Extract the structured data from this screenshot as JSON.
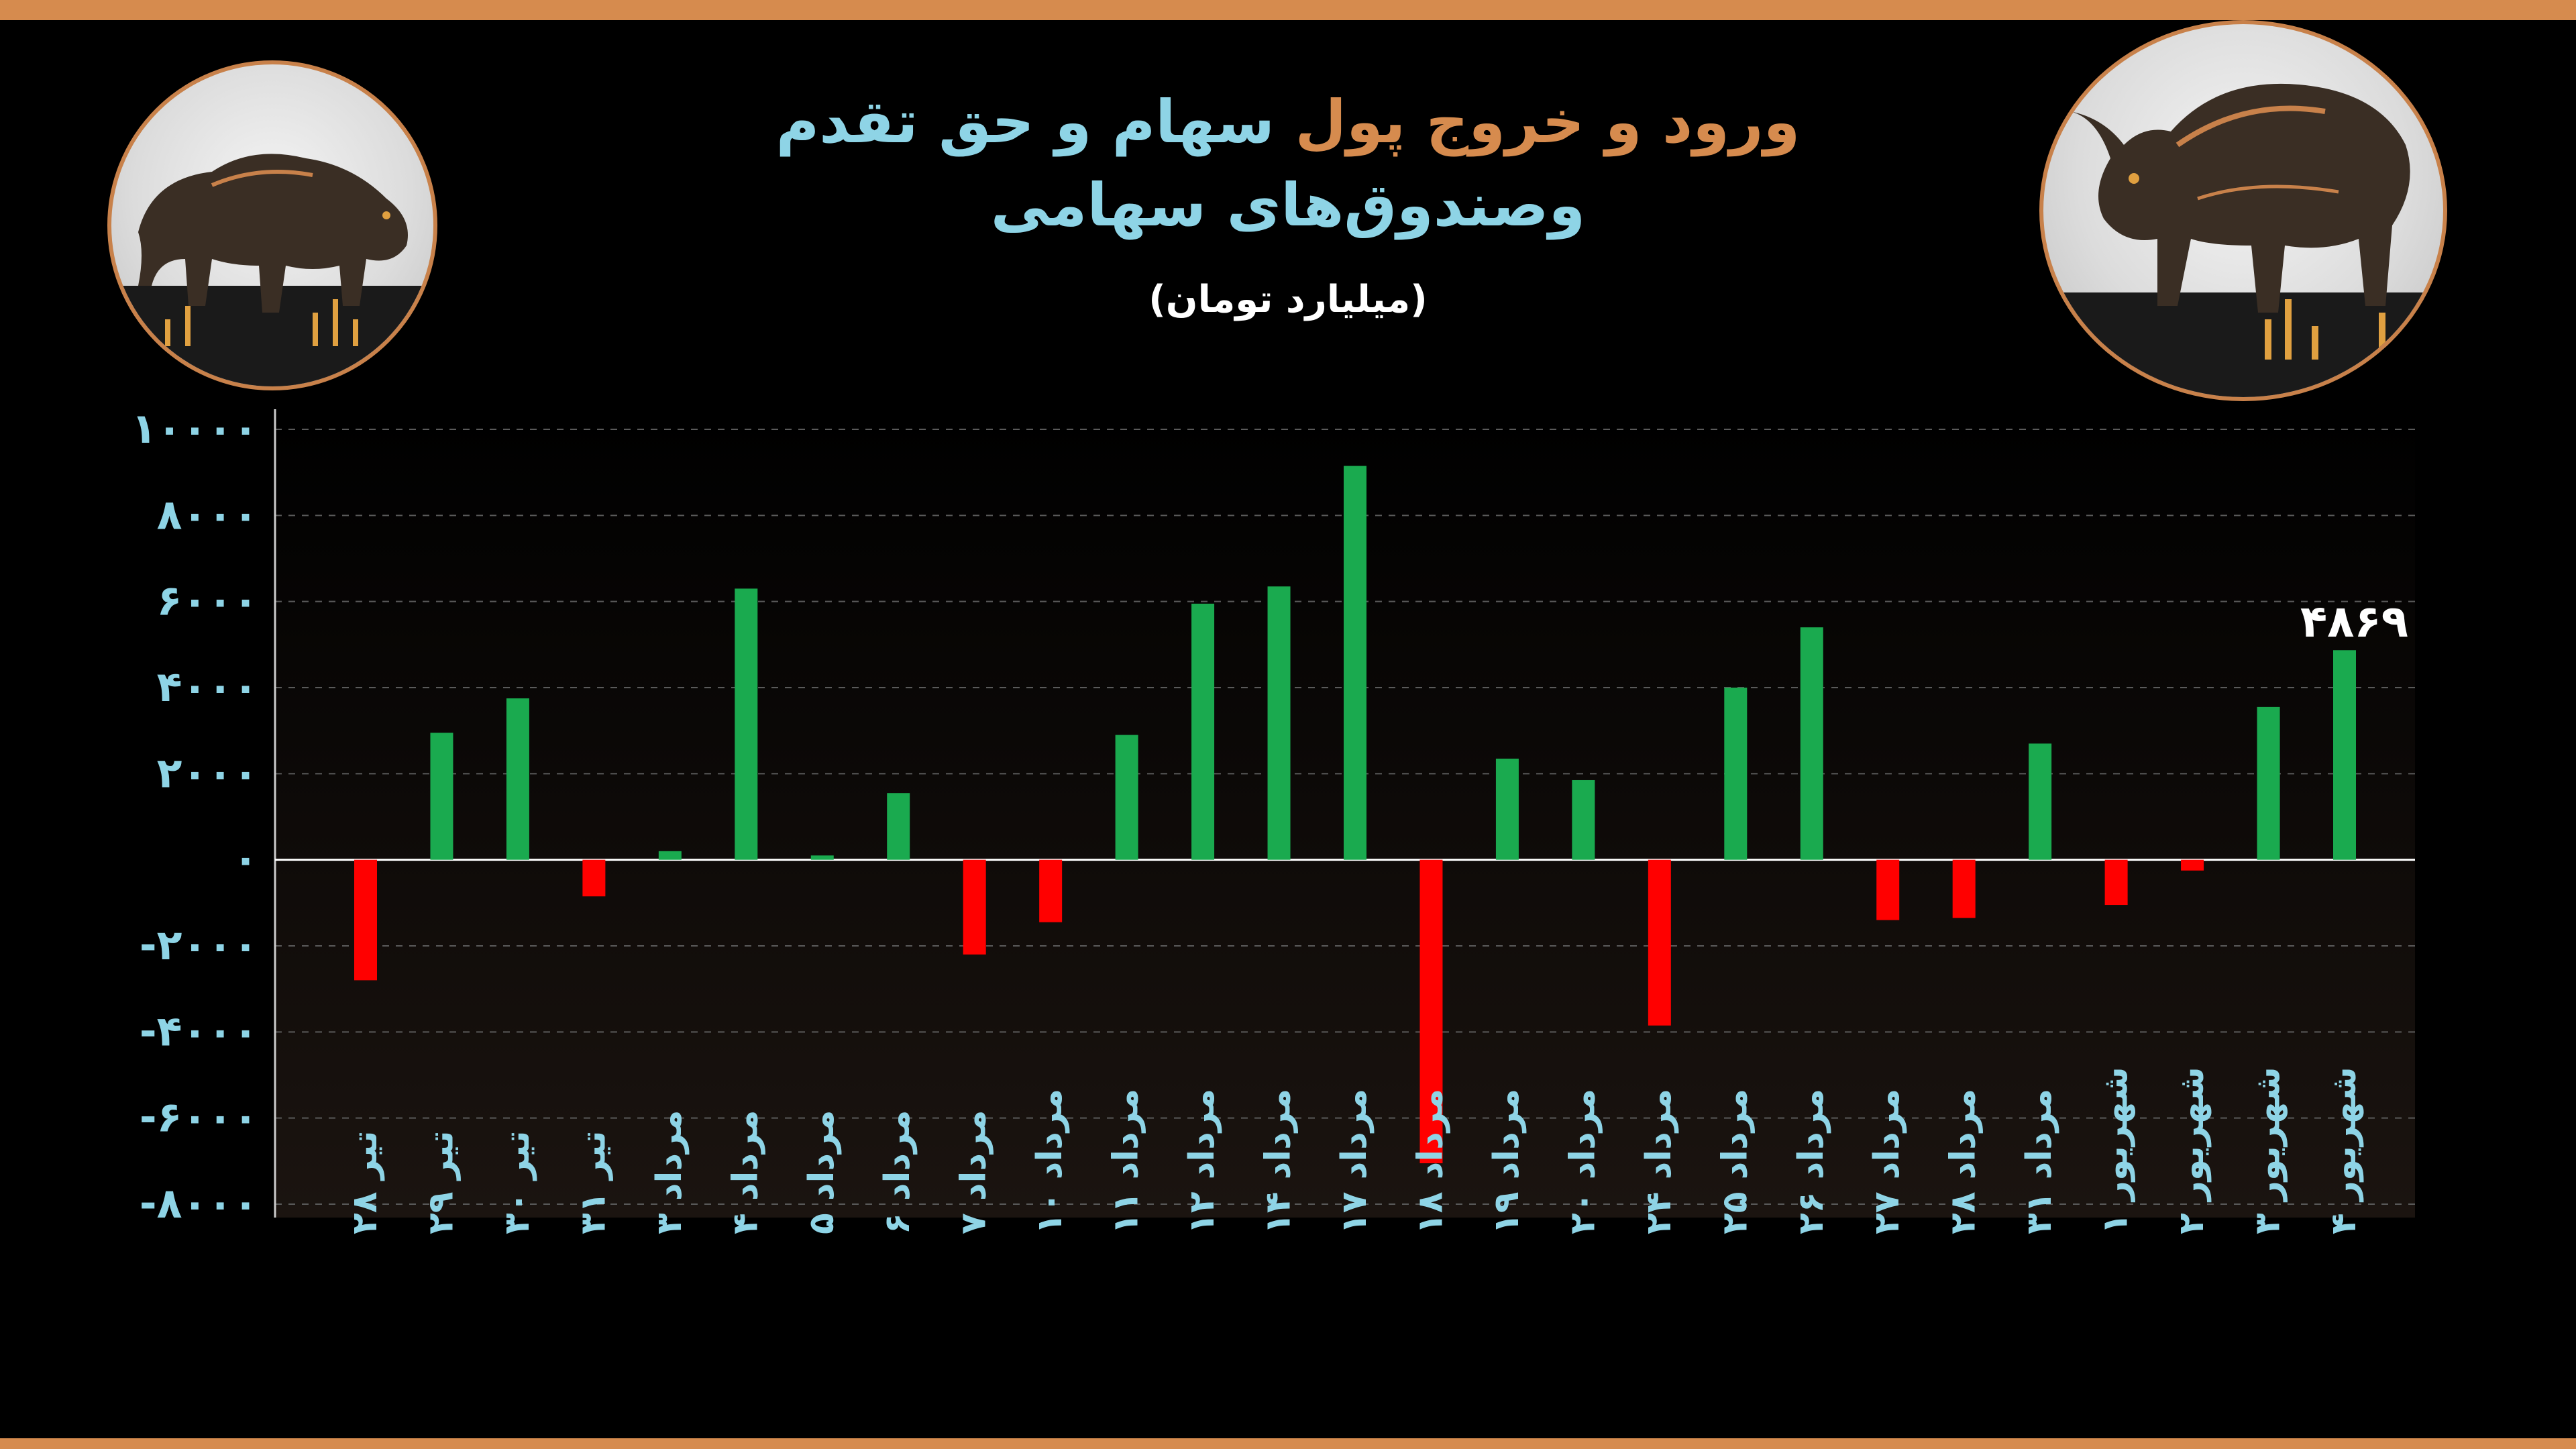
{
  "title": {
    "line1_part_a": "ورود و خروج پول",
    "line1_part_b": "سهام و حق تقدم",
    "line2": "وصندوق‌های سهامی",
    "unit": "(میلیارد تومان)"
  },
  "colors": {
    "positive": "#1aaa4f",
    "negative": "#ff0000",
    "axis_text": "#8ed4e6",
    "frame": "#d68b4e"
  },
  "decorations": {
    "left_icon": "bear-icon",
    "right_icon": "bull-icon"
  },
  "chart_data": {
    "type": "bar",
    "categories": [
      "تیر ۲۸",
      "تیر ۲۹",
      "تیر ۳۰",
      "تیر ۳۱",
      "مرداد ۳",
      "مرداد ۴",
      "مرداد ۵",
      "مرداد ۶",
      "مرداد ۷",
      "مرداد ۱۰",
      "مرداد ۱۱",
      "مرداد ۱۲",
      "مرداد ۱۴",
      "مرداد ۱۷",
      "مرداد ۱۸",
      "مرداد ۱۹",
      "مرداد ۲۰",
      "مرداد ۲۴",
      "مرداد ۲۵",
      "مرداد ۲۶",
      "مرداد ۲۷",
      "مرداد ۲۸",
      "مرداد ۳۱",
      "شهریور ۱",
      "شهریور ۲",
      "شهریور ۳",
      "شهریور ۴"
    ],
    "values": [
      -2800,
      2950,
      3750,
      -850,
      200,
      6300,
      100,
      1550,
      -2200,
      -1450,
      2900,
      5950,
      6350,
      9150,
      -7050,
      2350,
      1850,
      -3850,
      4000,
      5400,
      -1400,
      -1350,
      2700,
      -1050,
      -250,
      3550,
      4869
    ],
    "ylim": [
      -8000,
      10000
    ],
    "yticks": [
      -8000,
      -6000,
      -4000,
      -2000,
      0,
      2000,
      4000,
      6000,
      8000,
      10000
    ],
    "ytick_labels": [
      "-۸۰۰۰",
      "-۶۰۰۰",
      "-۴۰۰۰",
      "-۲۰۰۰",
      "۰",
      "۲۰۰۰",
      "۴۰۰۰",
      "۶۰۰۰",
      "۸۰۰۰",
      "۱۰۰۰۰"
    ],
    "annotations": [
      {
        "category": "شهریور ۴",
        "text": "۴۸۶۹"
      }
    ],
    "grid": true,
    "xlabel": "",
    "ylabel": ""
  }
}
